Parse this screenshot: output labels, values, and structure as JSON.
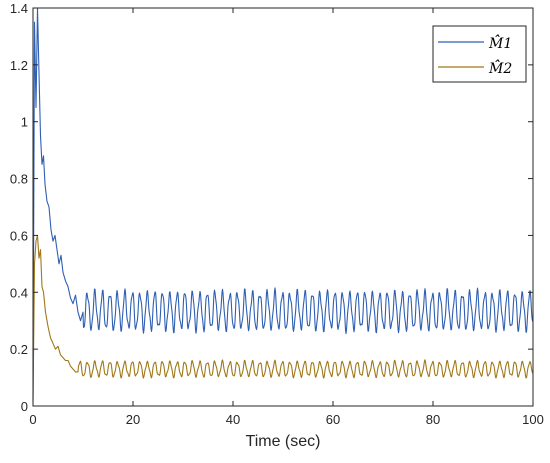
{
  "chart_data": {
    "type": "line",
    "title": "",
    "xlabel": "Time (sec)",
    "ylabel": "",
    "xlim": [
      0,
      100
    ],
    "ylim": [
      0,
      1.4
    ],
    "xticks": [
      "0",
      "20",
      "40",
      "60",
      "80",
      "100"
    ],
    "yticks": [
      "0",
      "0.2",
      "0.4",
      "0.6",
      "0.8",
      "1",
      "1.2",
      "1.4"
    ],
    "grid": false,
    "legend_position": "top-right",
    "series": [
      {
        "name": "M̂̂1",
        "color": "#2e5fb3",
        "x": [
          0,
          0.3,
          0.6,
          0.9,
          1.2,
          1.5,
          1.8,
          2.1,
          2.4,
          2.8,
          3.2,
          3.6,
          4.0,
          4.4,
          4.8,
          5.2,
          5.6,
          6.0,
          6.5,
          7.0,
          7.5,
          8.0,
          8.5,
          9.0,
          9.5,
          10.0
        ],
        "values": [
          0.02,
          1.35,
          1.05,
          1.4,
          1.17,
          0.95,
          0.85,
          0.88,
          0.78,
          0.72,
          0.7,
          0.62,
          0.58,
          0.6,
          0.55,
          0.5,
          0.53,
          0.47,
          0.44,
          0.42,
          0.38,
          0.36,
          0.39,
          0.33,
          0.3,
          0.33
        ],
        "steady_state_range": [
          0.26,
          0.41
        ],
        "oscillation_period_sec": 1.5
      },
      {
        "name": "M̂̂2",
        "color": "#a07818",
        "x": [
          0,
          0.3,
          0.6,
          0.9,
          1.2,
          1.5,
          1.8,
          2.1,
          2.5,
          3.0,
          3.5,
          4.0,
          4.5,
          5.0,
          5.5,
          6.0,
          6.5,
          7.0,
          7.5,
          8.0,
          8.5,
          9.0
        ],
        "values": [
          0.01,
          0.5,
          0.58,
          0.6,
          0.52,
          0.55,
          0.42,
          0.4,
          0.33,
          0.28,
          0.24,
          0.22,
          0.2,
          0.21,
          0.18,
          0.17,
          0.16,
          0.16,
          0.14,
          0.13,
          0.12,
          0.12
        ],
        "steady_state_range": [
          0.1,
          0.16
        ],
        "oscillation_period_sec": 1.5
      }
    ]
  }
}
